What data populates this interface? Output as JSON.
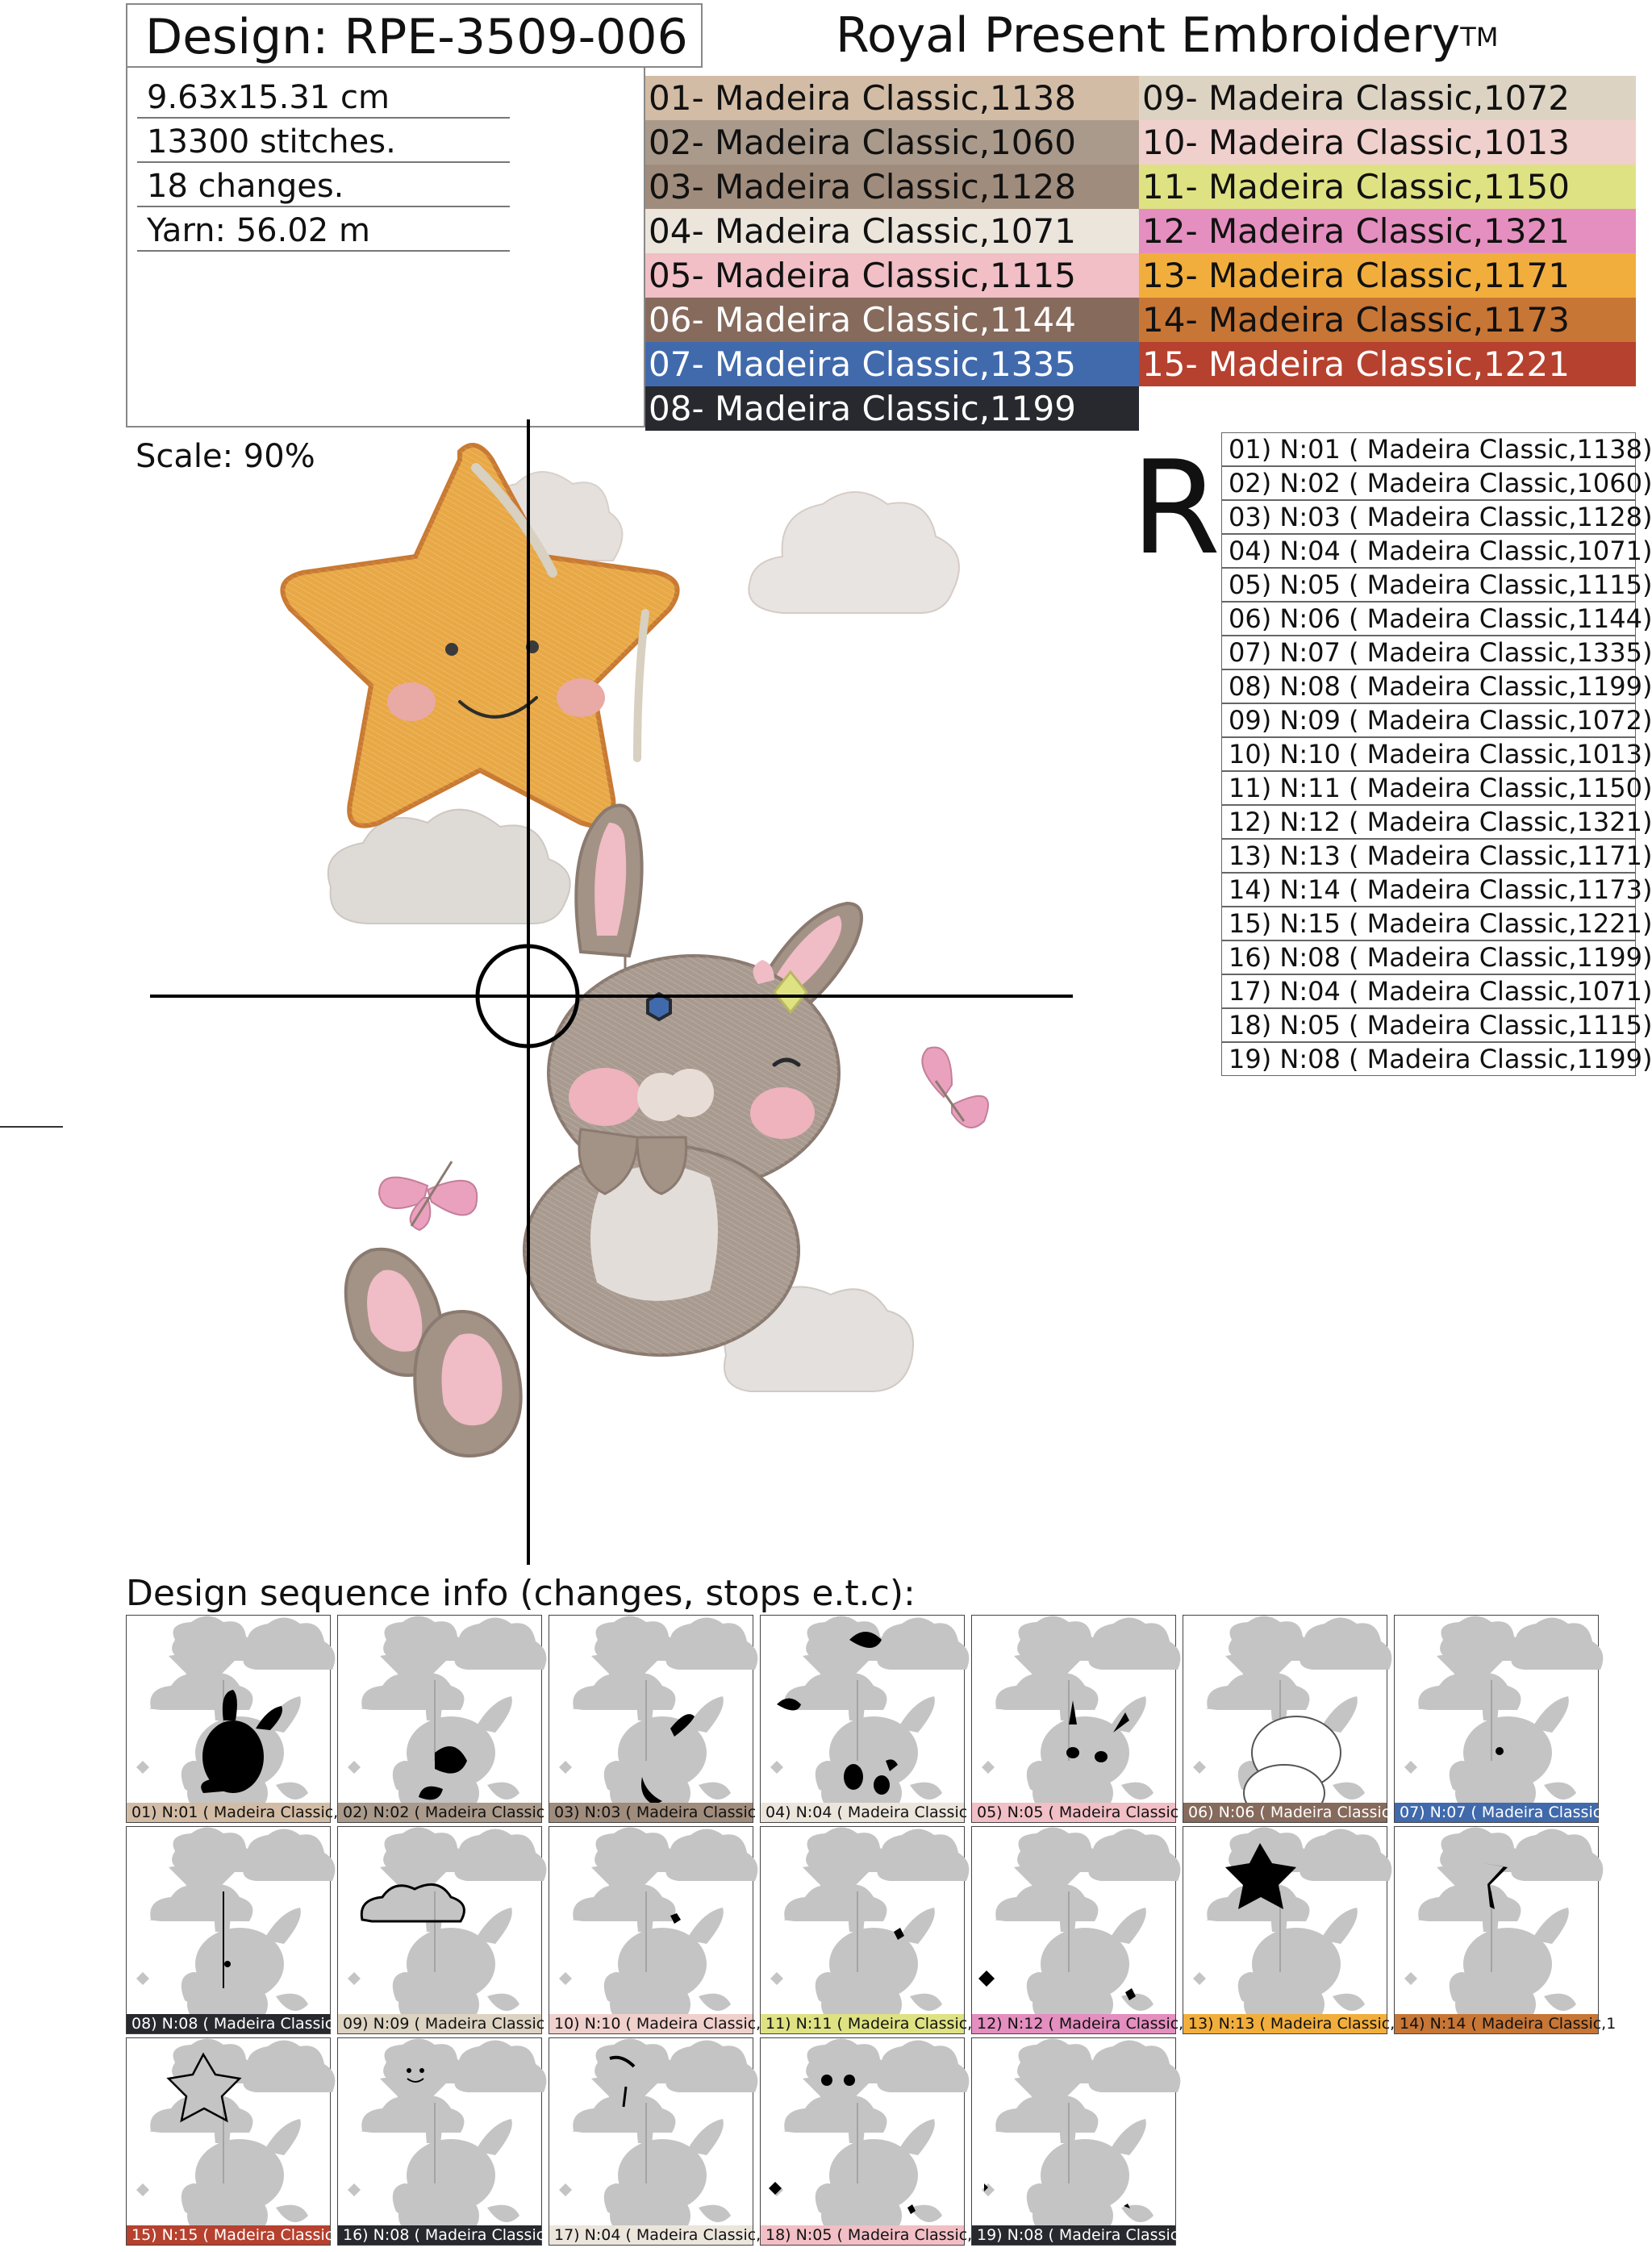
{
  "header": {
    "design": "Design: RPE-3509-006",
    "brand": "Royal Present Embroidery",
    "brand_mark": "TM"
  },
  "info": {
    "size": "9.63x15.31 cm",
    "stitches": "13300 stitches.",
    "changes": "18 changes.",
    "yarn": "Yarn: 56.02 m"
  },
  "colors": [
    {
      "label": "01- Madeira Classic,1138",
      "color": "#d3bca5",
      "dark": false
    },
    {
      "label": "02- Madeira Classic,1060",
      "color": "#aa9a8b",
      "dark": false
    },
    {
      "label": "03- Madeira Classic,1128",
      "color": "#a08c7c",
      "dark": false
    },
    {
      "label": "04- Madeira Classic,1071",
      "color": "#ebe5dc",
      "dark": false
    },
    {
      "label": "05- Madeira Classic,1115",
      "color": "#f1bfc5",
      "dark": false
    },
    {
      "label": "06- Madeira Classic,1144",
      "color": "#866a5c",
      "dark": true
    },
    {
      "label": "07- Madeira Classic,1335",
      "color": "#416aad",
      "dark": true
    },
    {
      "label": "08- Madeira Classic,1199",
      "color": "#27292e",
      "dark": true
    },
    {
      "label": "09- Madeira Classic,1072",
      "color": "#ddd3c2",
      "dark": false
    },
    {
      "label": "10- Madeira Classic,1013",
      "color": "#f0d0cc",
      "dark": false
    },
    {
      "label": "11- Madeira Classic,1150",
      "color": "#dfe283",
      "dark": false
    },
    {
      "label": "12- Madeira Classic,1321",
      "color": "#e48fbf",
      "dark": false
    },
    {
      "label": "13- Madeira Classic,1171",
      "color": "#f2ae3c",
      "dark": false
    },
    {
      "label": "14- Madeira Classic,1173",
      "color": "#c77636",
      "dark": false
    },
    {
      "label": "15- Madeira Classic,1221",
      "color": "#b6412f",
      "dark": true
    }
  ],
  "scale": "Scale: 90%",
  "orientation_mark": "R",
  "stops": [
    "01) N:01 ( Madeira Classic,1138)",
    "02) N:02 ( Madeira Classic,1060)",
    "03) N:03 ( Madeira Classic,1128)",
    "04) N:04 ( Madeira Classic,1071)",
    "05) N:05 ( Madeira Classic,1115)",
    "06) N:06 ( Madeira Classic,1144)",
    "07) N:07 ( Madeira Classic,1335)",
    "08) N:08 ( Madeira Classic,1199)",
    "09) N:09 ( Madeira Classic,1072)",
    "10) N:10 ( Madeira Classic,1013)",
    "11) N:11 ( Madeira Classic,1150)",
    "12) N:12 ( Madeira Classic,1321)",
    "13) N:13 ( Madeira Classic,1171)",
    "14) N:14 ( Madeira Classic,1173)",
    "15) N:15 ( Madeira Classic,1221)",
    "16) N:08 ( Madeira Classic,1199)",
    "17) N:04 ( Madeira Classic,1071)",
    "18) N:05 ( Madeira Classic,1115)",
    "19) N:08 ( Madeira Classic,1199)"
  ],
  "sequence_title": "Design sequence info (changes, stops e.t.c):",
  "thumbnails": [
    {
      "label": "01) N:01 ( Madeira Classic,1",
      "color": "#d3bca5",
      "dark": false
    },
    {
      "label": "02) N:02 ( Madeira Classic",
      "color": "#aa9a8b",
      "dark": false
    },
    {
      "label": "03) N:03 ( Madeira Classic",
      "color": "#a08c7c",
      "dark": false
    },
    {
      "label": "04) N:04 ( Madeira Classic",
      "color": "#ebe5dc",
      "dark": false
    },
    {
      "label": "05) N:05 ( Madeira Classic",
      "color": "#f1bfc5",
      "dark": false
    },
    {
      "label": "06) N:06 ( Madeira Classic",
      "color": "#866a5c",
      "dark": true
    },
    {
      "label": "07) N:07 ( Madeira Classic",
      "color": "#416aad",
      "dark": true
    },
    {
      "label": "08) N:08 ( Madeira Classic",
      "color": "#27292e",
      "dark": true
    },
    {
      "label": "09) N:09 ( Madeira Classic",
      "color": "#ddd3c2",
      "dark": false
    },
    {
      "label": "10) N:10 ( Madeira Classic,1",
      "color": "#f0d0cc",
      "dark": false
    },
    {
      "label": "11) N:11 ( Madeira Classic,11",
      "color": "#dfe283",
      "dark": false
    },
    {
      "label": "12) N:12 ( Madeira Classic,1",
      "color": "#e48fbf",
      "dark": false
    },
    {
      "label": "13) N:13 ( Madeira Classic,1",
      "color": "#f2ae3c",
      "dark": false
    },
    {
      "label": "14) N:14 ( Madeira Classic,1",
      "color": "#c77636",
      "dark": false
    },
    {
      "label": "15) N:15 ( Madeira Classic,1",
      "color": "#b6412f",
      "dark": true
    },
    {
      "label": "16) N:08 ( Madeira Classic,",
      "color": "#27292e",
      "dark": true
    },
    {
      "label": "17) N:04 ( Madeira Classic,",
      "color": "#ebe5dc",
      "dark": false
    },
    {
      "label": "18) N:05 ( Madeira Classic,",
      "color": "#f1bfc5",
      "dark": false
    },
    {
      "label": "19) N:08 ( Madeira Classic,",
      "color": "#27292e",
      "dark": true
    }
  ]
}
